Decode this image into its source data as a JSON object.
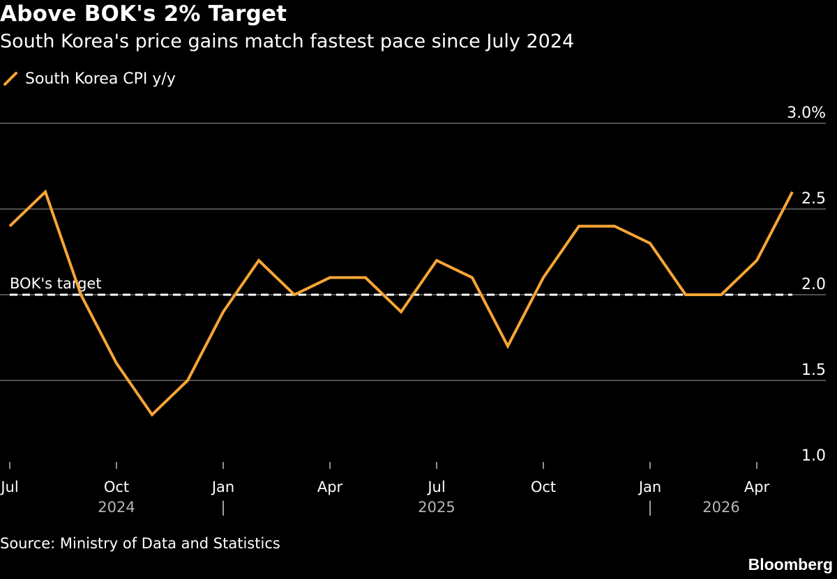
{
  "header": {
    "title": "Above BOK's 2% Target",
    "subtitle": "South Korea's price gains match fastest pace since July 2024"
  },
  "legend": {
    "label": "South Korea CPI y/y",
    "color": "#f7a535"
  },
  "footer": {
    "source": "Source: Ministry of Data and Statistics",
    "brand": "Bloomberg"
  },
  "chart_data": {
    "type": "line",
    "x": [
      "2024-07",
      "2024-08",
      "2024-09",
      "2024-10",
      "2024-11",
      "2024-12",
      "2025-01",
      "2025-02",
      "2025-03",
      "2025-04",
      "2025-05",
      "2025-06",
      "2025-07",
      "2025-08",
      "2025-09",
      "2025-10",
      "2025-11",
      "2025-12",
      "2026-01",
      "2026-02",
      "2026-03",
      "2026-04",
      "2026-05"
    ],
    "series": [
      {
        "name": "South Korea CPI y/y",
        "color": "#f7a535",
        "values": [
          2.4,
          2.6,
          2.0,
          1.6,
          1.3,
          1.5,
          1.9,
          2.2,
          2.0,
          2.1,
          2.1,
          1.9,
          2.2,
          2.1,
          1.7,
          2.1,
          2.4,
          2.4,
          2.3,
          2.0,
          2.0,
          2.2,
          2.6
        ]
      }
    ],
    "ylim": [
      1.0,
      3.0
    ],
    "y_ticks": [
      {
        "value": 3.0,
        "label": "3.0%"
      },
      {
        "value": 2.5,
        "label": "2.5"
      },
      {
        "value": 2.0,
        "label": "2.0"
      },
      {
        "value": 1.5,
        "label": "1.5"
      },
      {
        "value": 1.0,
        "label": "1.0"
      }
    ],
    "x_ticks": [
      {
        "x": "2024-07",
        "label": "Jul"
      },
      {
        "x": "2024-10",
        "label": "Oct"
      },
      {
        "x": "2025-01",
        "label": "Jan"
      },
      {
        "x": "2025-04",
        "label": "Apr"
      },
      {
        "x": "2025-07",
        "label": "Jul"
      },
      {
        "x": "2025-10",
        "label": "Oct"
      },
      {
        "x": "2026-01",
        "label": "Jan"
      },
      {
        "x": "2026-04",
        "label": "Apr"
      }
    ],
    "year_labels": [
      {
        "x": "2024-10",
        "label": "2024"
      },
      {
        "x": "2025-07",
        "label": "2025"
      },
      {
        "x": "2026-03",
        "label": "2026"
      }
    ],
    "year_dividers": [
      "2025-01",
      "2026-01"
    ],
    "year_divider_label": "|",
    "reference_line": {
      "value": 2.0,
      "label": "BOK's target",
      "style": "dashed",
      "color": "#ffffff"
    },
    "grid": true,
    "y_axis_side": "right",
    "legend_position": "top-left",
    "gridline_color": "#6b6b6b"
  }
}
